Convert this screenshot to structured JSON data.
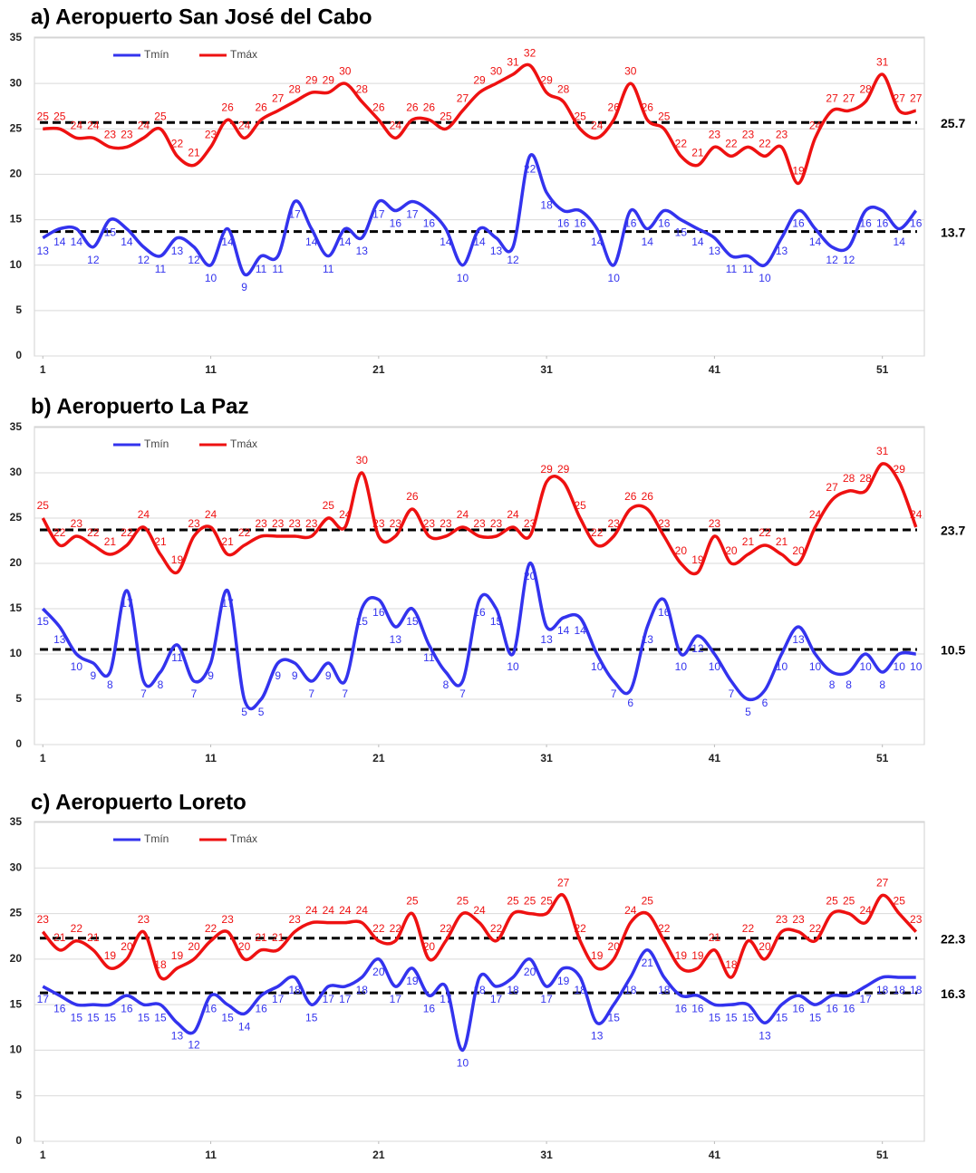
{
  "chart_data": [
    {
      "type": "line",
      "title": "a) Aeropuerto San José del Cabo",
      "x": [
        1,
        2,
        3,
        4,
        5,
        6,
        7,
        8,
        9,
        10,
        11,
        12,
        13,
        14,
        15,
        16,
        17,
        18,
        19,
        20,
        21,
        22,
        23,
        24,
        25,
        26,
        27,
        28,
        29,
        30,
        31,
        32,
        33,
        34,
        35,
        36,
        37,
        38,
        39,
        40,
        41,
        42,
        43,
        44,
        45,
        46,
        47,
        48,
        49,
        50,
        51,
        52,
        53
      ],
      "series": [
        {
          "name": "Tmín",
          "color": "#3333ee",
          "values": [
            13,
            14,
            14,
            12,
            15,
            14,
            12,
            11,
            13,
            12,
            10,
            14,
            9,
            11,
            11,
            17,
            14,
            11,
            14,
            13,
            17,
            16,
            17,
            16,
            14,
            10,
            14,
            13,
            12,
            22,
            18,
            16,
            16,
            14,
            10,
            16,
            14,
            16,
            15,
            14,
            13,
            11,
            11,
            10,
            13,
            16,
            14,
            12,
            12,
            16,
            16,
            14,
            16
          ]
        },
        {
          "name": "Tmáx",
          "color": "#ee1111",
          "values": [
            25,
            25,
            24,
            24,
            23,
            23,
            24,
            25,
            22,
            21,
            23,
            26,
            24,
            26,
            27,
            28,
            29,
            29,
            30,
            28,
            26,
            24,
            26,
            26,
            25,
            27,
            29,
            30,
            31,
            32,
            29,
            28,
            25,
            24,
            26,
            30,
            26,
            25,
            22,
            21,
            23,
            22,
            23,
            22,
            23,
            19,
            24,
            27,
            27,
            28,
            31,
            27,
            27
          ]
        }
      ],
      "reference_lines": [
        25.7,
        13.7
      ],
      "xlim": [
        0.5,
        53.5
      ],
      "xticks": [
        1,
        11,
        21,
        31,
        41,
        51
      ],
      "ylim": [
        0,
        35
      ],
      "yticks": [
        0,
        5,
        10,
        15,
        20,
        25,
        30,
        35
      ],
      "grid": true
    },
    {
      "type": "line",
      "title": "b) Aeropuerto La Paz",
      "x": [
        1,
        2,
        3,
        4,
        5,
        6,
        7,
        8,
        9,
        10,
        11,
        12,
        13,
        14,
        15,
        16,
        17,
        18,
        19,
        20,
        21,
        22,
        23,
        24,
        25,
        26,
        27,
        28,
        29,
        30,
        31,
        32,
        33,
        34,
        35,
        36,
        37,
        38,
        39,
        40,
        41,
        42,
        43,
        44,
        45,
        46,
        47,
        48,
        49,
        50,
        51,
        52,
        53
      ],
      "series": [
        {
          "name": "Tmín",
          "color": "#3333ee",
          "values": [
            15,
            13,
            10,
            9,
            8,
            17,
            7,
            8,
            11,
            7,
            9,
            17,
            5,
            5,
            9,
            9,
            7,
            9,
            7,
            15,
            16,
            13,
            15,
            11,
            8,
            7,
            16,
            15,
            10,
            20,
            13,
            14,
            14,
            10,
            7,
            6,
            13,
            16,
            10,
            12,
            10,
            7,
            5,
            6,
            10,
            13,
            10,
            8,
            8,
            10,
            8,
            10,
            10
          ]
        },
        {
          "name": "Tmáx",
          "color": "#ee1111",
          "values": [
            25,
            22,
            23,
            22,
            21,
            22,
            24,
            21,
            19,
            23,
            24,
            21,
            22,
            23,
            23,
            23,
            23,
            25,
            24,
            30,
            23,
            23,
            26,
            23,
            23,
            24,
            23,
            23,
            24,
            23,
            29,
            29,
            25,
            22,
            23,
            26,
            26,
            23,
            20,
            19,
            23,
            20,
            21,
            22,
            21,
            20,
            24,
            27,
            28,
            28,
            31,
            29,
            24
          ]
        }
      ],
      "reference_lines": [
        23.7,
        10.5
      ],
      "xlim": [
        0.5,
        53.5
      ],
      "xticks": [
        1,
        11,
        21,
        31,
        41,
        51
      ],
      "ylim": [
        0,
        35
      ],
      "yticks": [
        0,
        5,
        10,
        15,
        20,
        25,
        30,
        35
      ],
      "grid": true
    },
    {
      "type": "line",
      "title": "c) Aeropuerto Loreto",
      "x": [
        1,
        2,
        3,
        4,
        5,
        6,
        7,
        8,
        9,
        10,
        11,
        12,
        13,
        14,
        15,
        16,
        17,
        18,
        19,
        20,
        21,
        22,
        23,
        24,
        25,
        26,
        27,
        28,
        29,
        30,
        31,
        32,
        33,
        34,
        35,
        36,
        37,
        38,
        39,
        40,
        41,
        42,
        43,
        44,
        45,
        46,
        47,
        48,
        49,
        50,
        51,
        52,
        53
      ],
      "series": [
        {
          "name": "Tmín",
          "color": "#3333ee",
          "values": [
            17,
            16,
            15,
            15,
            15,
            16,
            15,
            15,
            13,
            12,
            16,
            15,
            14,
            16,
            17,
            18,
            15,
            17,
            17,
            18,
            20,
            17,
            19,
            16,
            17,
            10,
            18,
            17,
            18,
            20,
            17,
            19,
            18,
            13,
            15,
            18,
            21,
            18,
            16,
            16,
            15,
            15,
            15,
            13,
            15,
            16,
            15,
            16,
            16,
            17,
            18,
            18,
            18
          ]
        },
        {
          "name": "Tmáx",
          "color": "#ee1111",
          "values": [
            23,
            21,
            22,
            21,
            19,
            20,
            23,
            18,
            19,
            20,
            22,
            23,
            20,
            21,
            21,
            23,
            24,
            24,
            24,
            24,
            22,
            22,
            25,
            20,
            22,
            25,
            24,
            22,
            25,
            25,
            25,
            27,
            22,
            19,
            20,
            24,
            25,
            22,
            19,
            19,
            21,
            18,
            22,
            20,
            23,
            23,
            22,
            25,
            25,
            24,
            27,
            25,
            23
          ]
        }
      ],
      "reference_lines": [
        22.3,
        16.3
      ],
      "xlim": [
        0.5,
        53.5
      ],
      "xticks": [
        1,
        11,
        21,
        31,
        41,
        51
      ],
      "ylim": [
        0,
        35
      ],
      "yticks": [
        0,
        5,
        10,
        15,
        20,
        25,
        30,
        35
      ],
      "grid": true
    }
  ]
}
